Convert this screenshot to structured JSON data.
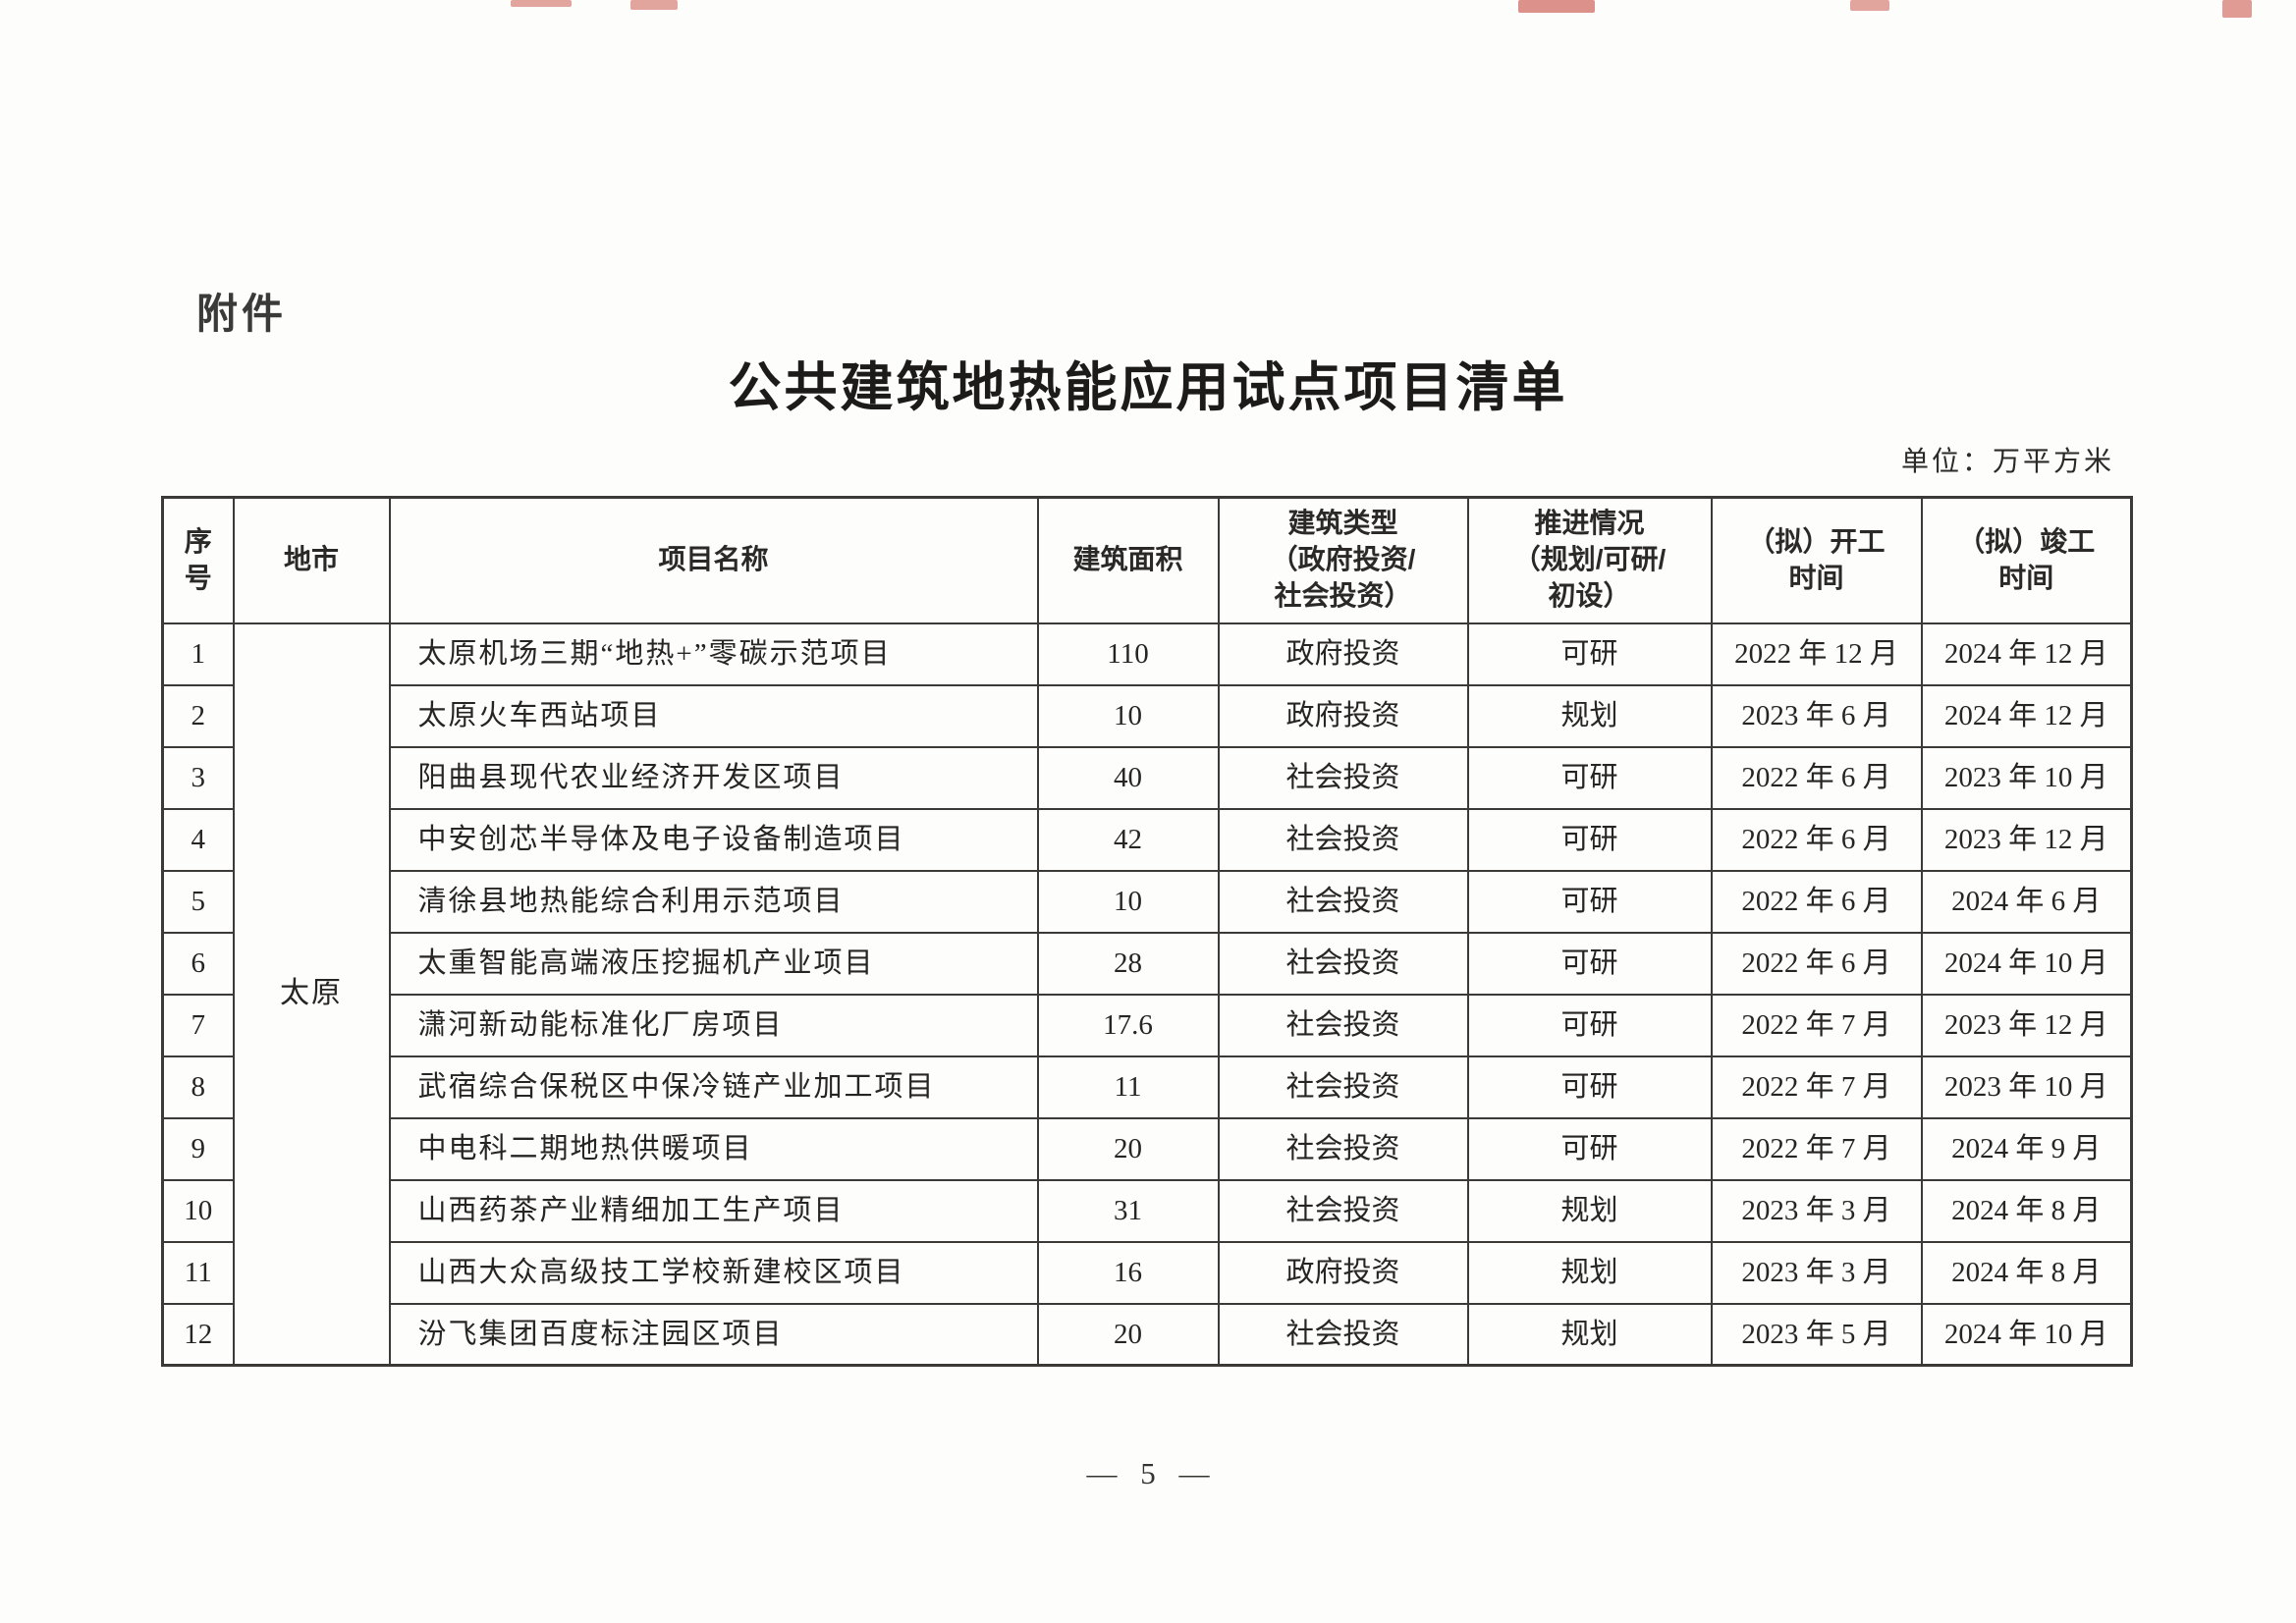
{
  "page": {
    "attachment_label": "附件",
    "title": "公共建筑地热能应用试点项目清单",
    "unit_note": "单位：万平方米",
    "page_number": "— 5 —"
  },
  "table": {
    "headers": {
      "no": "序\n号",
      "city": "地市",
      "project": "项目名称",
      "area": "建筑面积",
      "type": "建筑类型\n（政府投资/\n社会投资）",
      "progress": "推进情况\n（规划/可研/\n初设）",
      "start": "（拟）开工\n时间",
      "finish": "（拟）竣工\n时间"
    },
    "city_group": "太原",
    "rows": [
      {
        "no": "1",
        "project": "太原机场三期“地热+”零碳示范项目",
        "area": "110",
        "type": "政府投资",
        "progress": "可研",
        "start": "2022 年 12 月",
        "finish": "2024 年 12 月"
      },
      {
        "no": "2",
        "project": "太原火车西站项目",
        "area": "10",
        "type": "政府投资",
        "progress": "规划",
        "start": "2023 年 6 月",
        "finish": "2024 年 12 月"
      },
      {
        "no": "3",
        "project": "阳曲县现代农业经济开发区项目",
        "area": "40",
        "type": "社会投资",
        "progress": "可研",
        "start": "2022 年 6 月",
        "finish": "2023 年 10 月"
      },
      {
        "no": "4",
        "project": "中安创芯半导体及电子设备制造项目",
        "area": "42",
        "type": "社会投资",
        "progress": "可研",
        "start": "2022 年 6 月",
        "finish": "2023 年 12 月"
      },
      {
        "no": "5",
        "project": "清徐县地热能综合利用示范项目",
        "area": "10",
        "type": "社会投资",
        "progress": "可研",
        "start": "2022 年 6 月",
        "finish": "2024 年 6 月"
      },
      {
        "no": "6",
        "project": "太重智能高端液压挖掘机产业项目",
        "area": "28",
        "type": "社会投资",
        "progress": "可研",
        "start": "2022 年 6 月",
        "finish": "2024 年 10 月"
      },
      {
        "no": "7",
        "project": "潇河新动能标准化厂房项目",
        "area": "17.6",
        "type": "社会投资",
        "progress": "可研",
        "start": "2022 年 7 月",
        "finish": "2023 年 12 月"
      },
      {
        "no": "8",
        "project": "武宿综合保税区中保冷链产业加工项目",
        "area": "11",
        "type": "社会投资",
        "progress": "可研",
        "start": "2022 年 7 月",
        "finish": "2023 年 10 月"
      },
      {
        "no": "9",
        "project": "中电科二期地热供暖项目",
        "area": "20",
        "type": "社会投资",
        "progress": "可研",
        "start": "2022 年 7 月",
        "finish": "2024 年 9 月"
      },
      {
        "no": "10",
        "project": "山西药茶产业精细加工生产项目",
        "area": "31",
        "type": "社会投资",
        "progress": "规划",
        "start": "2023 年 3 月",
        "finish": "2024 年 8 月"
      },
      {
        "no": "11",
        "project": "山西大众高级技工学校新建校区项目",
        "area": "16",
        "type": "政府投资",
        "progress": "规划",
        "start": "2023 年 3 月",
        "finish": "2024 年 8 月"
      },
      {
        "no": "12",
        "project": "汾飞集团百度标注园区项目",
        "area": "20",
        "type": "社会投资",
        "progress": "规划",
        "start": "2023 年 5 月",
        "finish": "2024 年 10 月"
      }
    ]
  }
}
